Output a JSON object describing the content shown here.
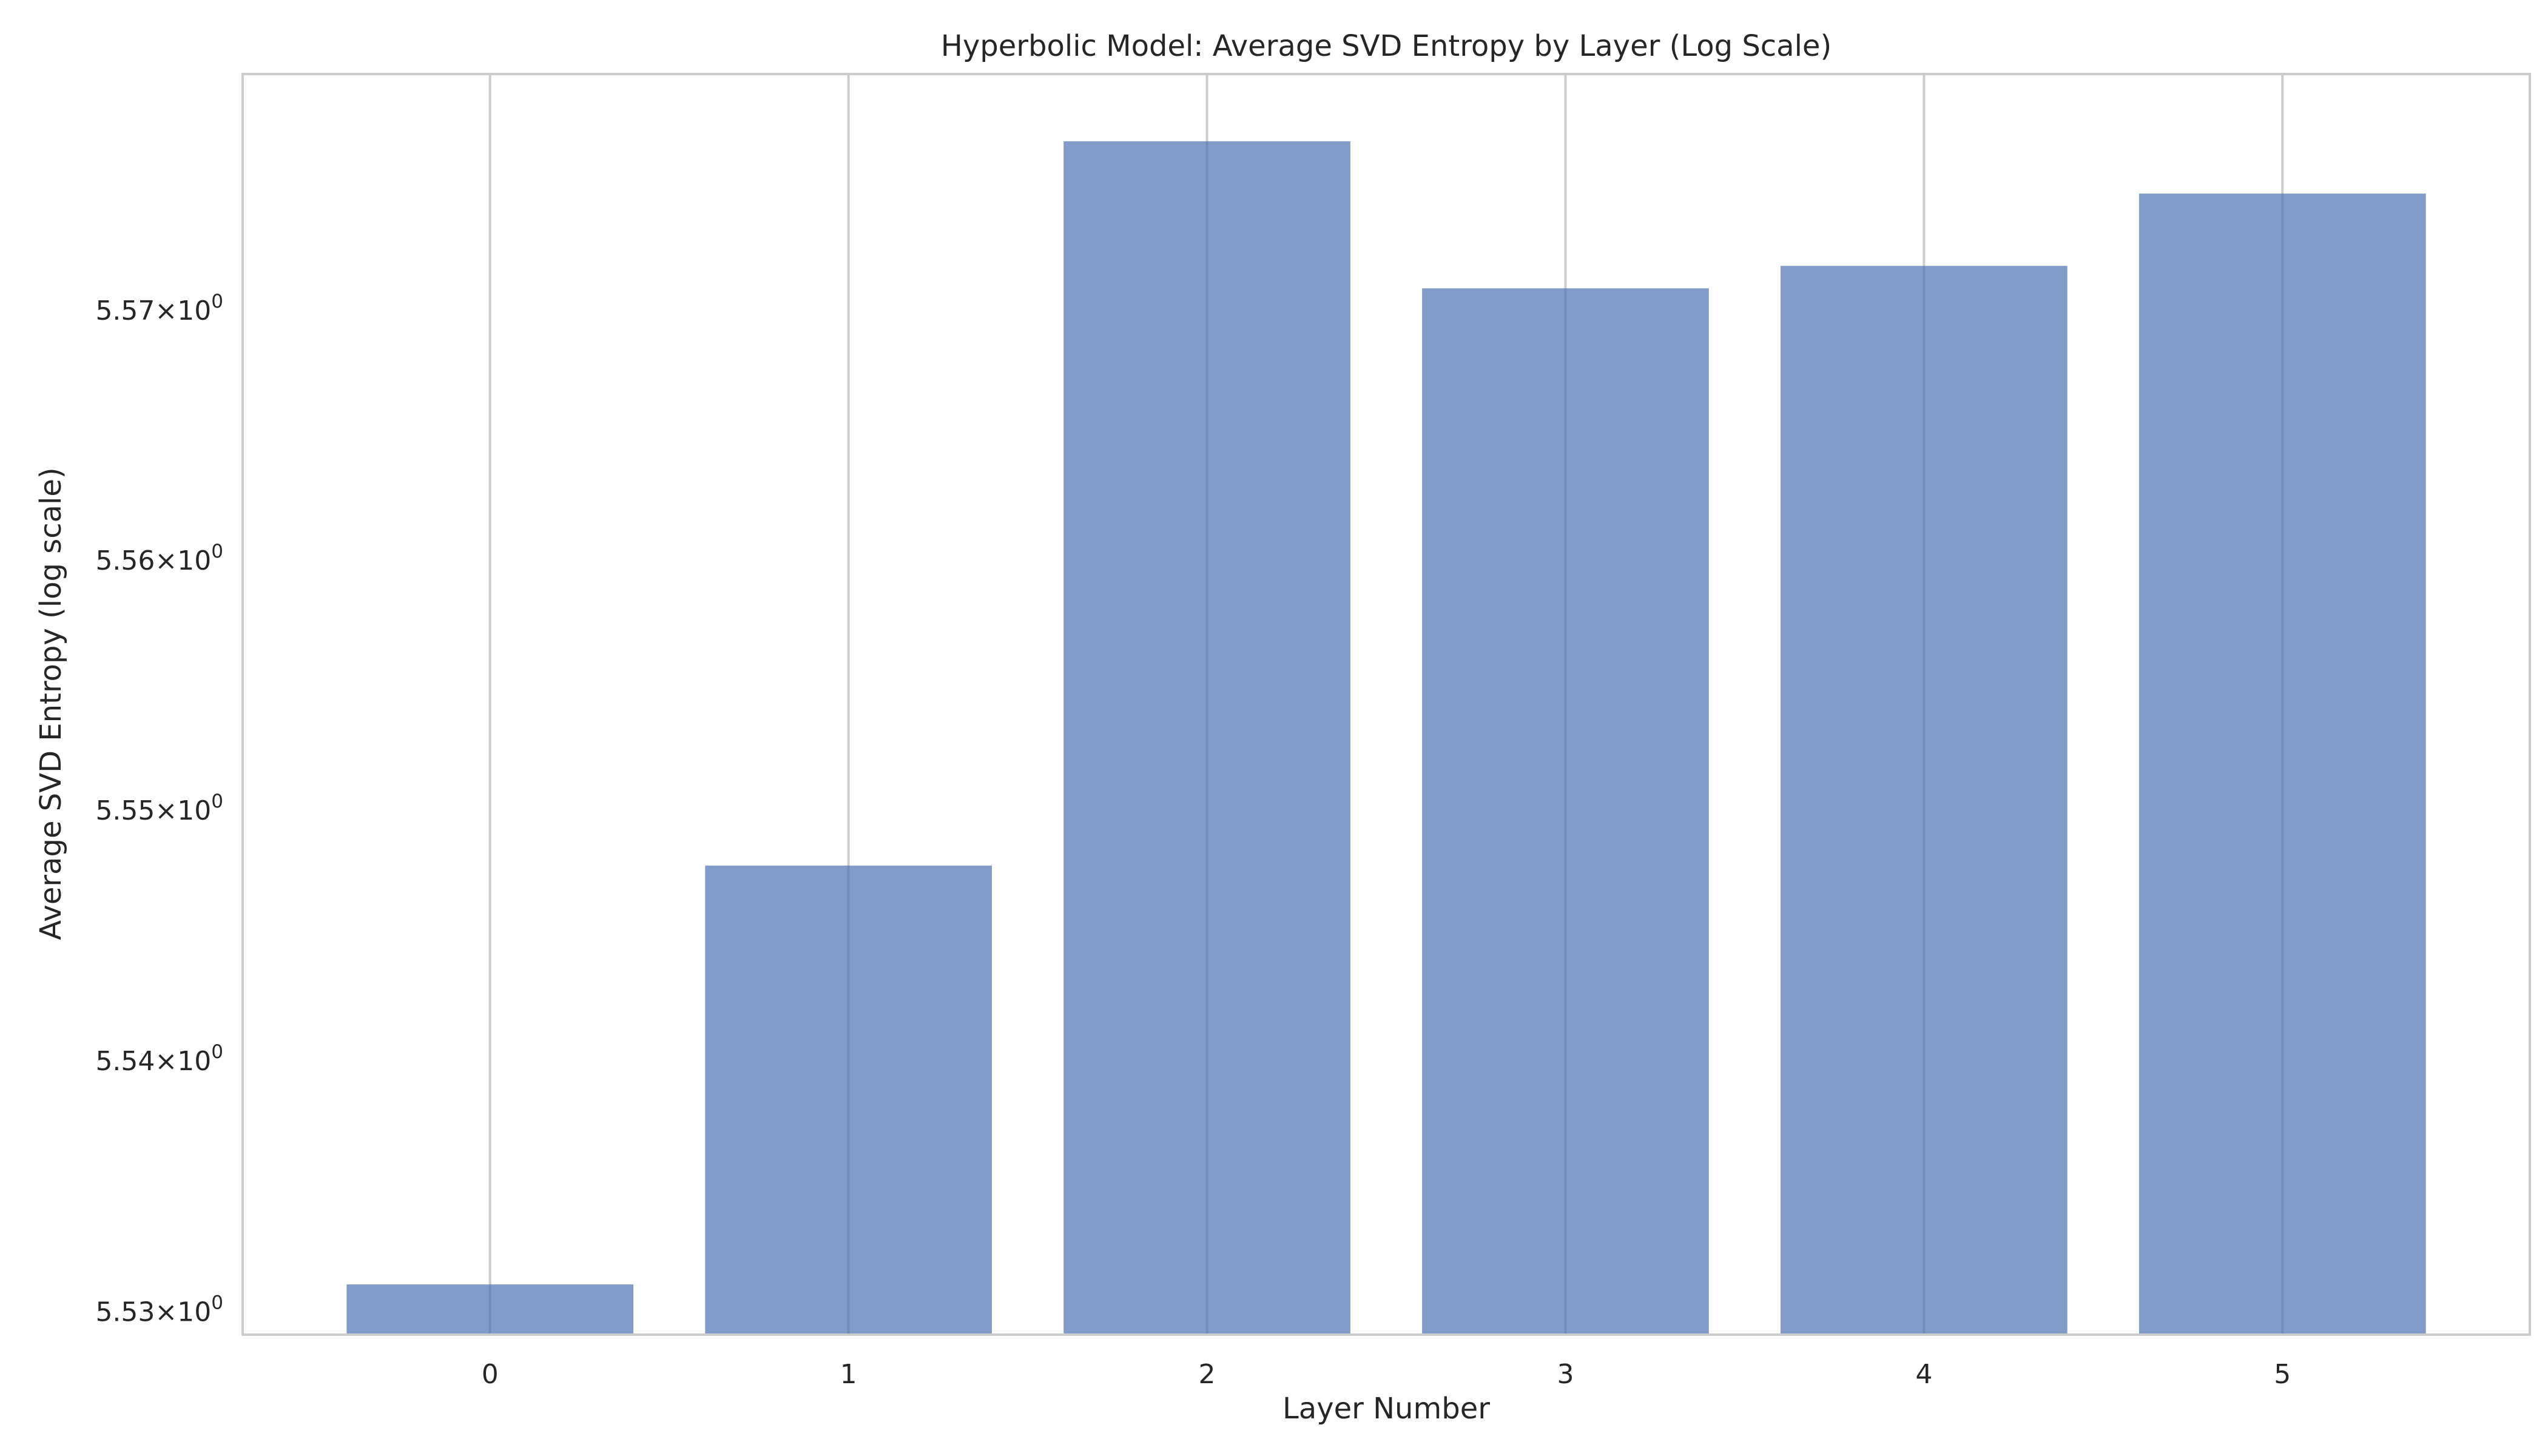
{
  "chart_data": {
    "type": "bar",
    "title": "Hyperbolic Model: Average SVD Entropy by Layer (Log Scale)",
    "xlabel": "Layer Number",
    "ylabel": "Average SVD Entropy (log scale)",
    "categories": [
      "0",
      "1",
      "2",
      "3",
      "4",
      "5"
    ],
    "values": [
      5.5311,
      5.5478,
      5.5768,
      5.5709,
      5.5718,
      5.5747
    ],
    "y_scale": "log",
    "ylim": [
      5.5291,
      5.5795
    ],
    "y_ticks": [
      {
        "value": 5.53,
        "mantissa": "5.53",
        "times": "×",
        "base": "10",
        "exponent": "0"
      },
      {
        "value": 5.54,
        "mantissa": "5.54",
        "times": "×",
        "base": "10",
        "exponent": "0"
      },
      {
        "value": 5.55,
        "mantissa": "5.55",
        "times": "×",
        "base": "10",
        "exponent": "0"
      },
      {
        "value": 5.56,
        "mantissa": "5.56",
        "times": "×",
        "base": "10",
        "exponent": "0"
      },
      {
        "value": 5.57,
        "mantissa": "5.57",
        "times": "×",
        "base": "10",
        "exponent": "0"
      }
    ],
    "grid": "vertical",
    "bar_color": "#4c72b0",
    "bar_opacity": 0.7
  }
}
